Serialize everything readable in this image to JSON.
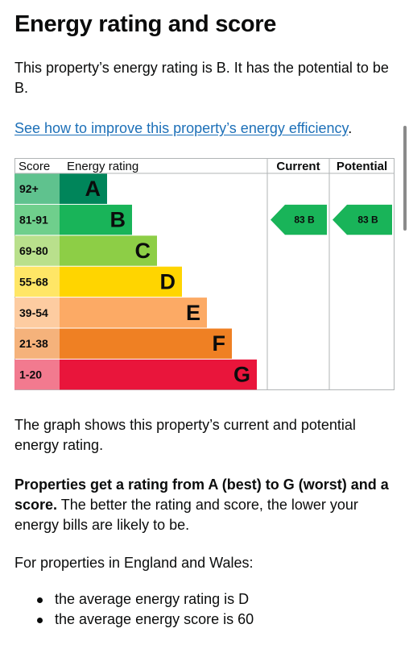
{
  "page": {
    "title": "Energy rating and score",
    "intro": "This property’s energy rating is B. It has the potential to be B.",
    "link_text": "See how to improve this property’s energy efficiency",
    "link_suffix": ".",
    "graph_note": "The graph shows this property’s current and potential energy rating.",
    "ratings_bold": "Properties get a rating from A (best) to G (worst) and a score.",
    "ratings_rest": " The better the rating and score, the lower your energy bills are likely to be.",
    "england_wales": "For properties in England and Wales:",
    "averages": [
      "the average energy rating is D",
      "the average energy score is 60"
    ]
  },
  "chart_data": {
    "type": "table",
    "headers": {
      "score": "Score",
      "rating": "Energy rating",
      "current": "Current",
      "potential": "Potential"
    },
    "bands": [
      {
        "score": "92+",
        "letter": "A",
        "color": "#00855a",
        "score_bg": "#5fc28e"
      },
      {
        "score": "81-91",
        "letter": "B",
        "color": "#19b459",
        "score_bg": "#6fcf8c"
      },
      {
        "score": "69-80",
        "letter": "C",
        "color": "#8dce46",
        "score_bg": "#b9e08c"
      },
      {
        "score": "55-68",
        "letter": "D",
        "color": "#ffd500",
        "score_bg": "#ffe666"
      },
      {
        "score": "39-54",
        "letter": "E",
        "color": "#fcaa65",
        "score_bg": "#fdcca1"
      },
      {
        "score": "21-38",
        "letter": "F",
        "color": "#ef8023",
        "score_bg": "#f5b27b"
      },
      {
        "score": "1-20",
        "letter": "G",
        "color": "#e9153b",
        "score_bg": "#f27a8f"
      }
    ],
    "current": {
      "score": 83,
      "band": "B",
      "label": "83  B",
      "color": "#19b459"
    },
    "potential": {
      "score": 83,
      "band": "B",
      "label": "83  B",
      "color": "#19b459"
    }
  },
  "colors": {
    "text": "#0b0c0c",
    "link": "#1d70b8",
    "band_A": "#00855a",
    "band_B": "#19b459",
    "band_C": "#8dce46",
    "band_D": "#ffd500",
    "band_E": "#fcaa65",
    "band_F": "#ef8023",
    "band_G": "#e9153b"
  }
}
